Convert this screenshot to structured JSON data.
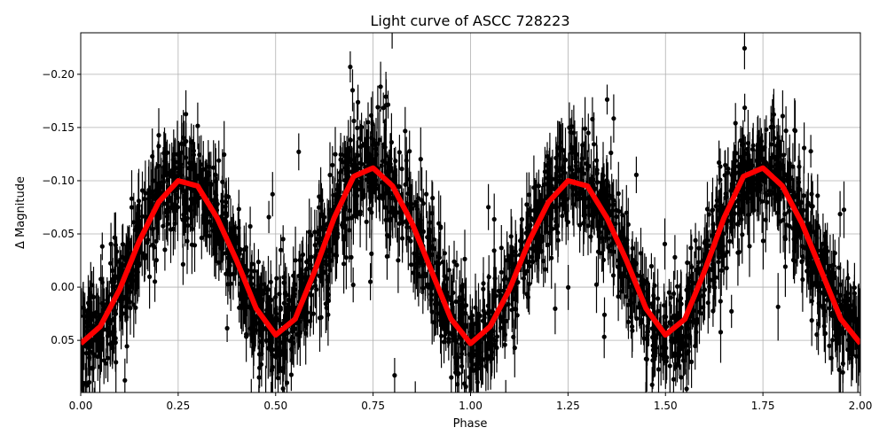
{
  "chart_data": {
    "type": "scatter",
    "title": "Light curve of ASCC 728223",
    "xlabel": "Phase",
    "ylabel": "Δ Magnitude",
    "xlim": [
      0,
      2
    ],
    "ylim": [
      0.099,
      -0.239
    ],
    "y_inverted": true,
    "grid": true,
    "xticks": [
      "0.00",
      "0.25",
      "0.50",
      "0.75",
      "1.00",
      "1.25",
      "1.50",
      "1.75",
      "2.00"
    ],
    "yticks": [
      "−0.20",
      "−0.15",
      "−0.10",
      "−0.05",
      "0.00",
      "0.05"
    ],
    "ytick_values": [
      -0.2,
      -0.15,
      -0.1,
      -0.05,
      0.0,
      0.05
    ],
    "series": [
      {
        "kind": "errorbar-points",
        "color": "#000000",
        "description_of_spread": "dense cloud around model, typical scatter ±0.04 with outliers to ±0.15"
      },
      {
        "kind": "model-line",
        "color": "#ff0000",
        "x": [
          0,
          0.05,
          0.1,
          0.15,
          0.2,
          0.25,
          0.3,
          0.35,
          0.4,
          0.45,
          0.5,
          0.55,
          0.6,
          0.65,
          0.7,
          0.75,
          0.8,
          0.85,
          0.9,
          0.95,
          1.0,
          1.05,
          1.1,
          1.15,
          1.2,
          1.25,
          1.3,
          1.35,
          1.4,
          1.45,
          1.5,
          1.55,
          1.6,
          1.65,
          1.7,
          1.75,
          1.8,
          1.85,
          1.9,
          1.95,
          2.0
        ],
        "y": [
          0.053,
          0.037,
          0.002,
          -0.043,
          -0.08,
          -0.1,
          -0.095,
          -0.065,
          -0.025,
          0.02,
          0.045,
          0.03,
          -0.015,
          -0.065,
          -0.104,
          -0.112,
          -0.095,
          -0.06,
          -0.015,
          0.03,
          0.053,
          0.037,
          0.002,
          -0.043,
          -0.08,
          -0.1,
          -0.095,
          -0.065,
          -0.025,
          0.02,
          0.045,
          0.03,
          -0.015,
          -0.065,
          -0.104,
          -0.112,
          -0.095,
          -0.06,
          -0.015,
          0.03,
          0.053
        ]
      }
    ]
  }
}
